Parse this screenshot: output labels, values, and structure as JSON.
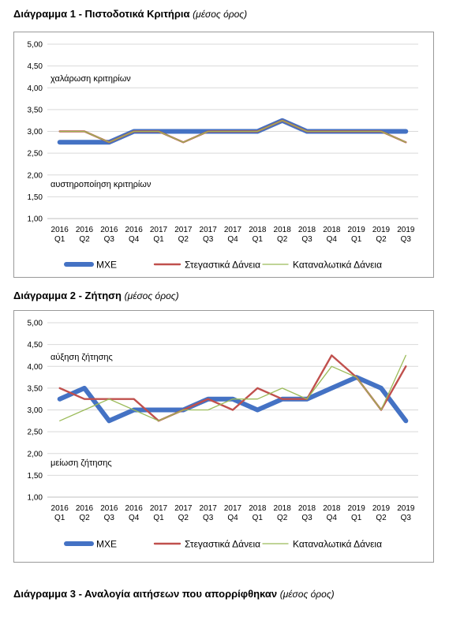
{
  "headings": {
    "chart1_title": "Διάγραμμα 1 - Πιστοδοτικά Κριτήρια",
    "chart1_subtitle": "(μέσος όρος)",
    "chart2_title": "Διάγραμμα 2 - Ζήτηση",
    "chart2_subtitle": "(μέσος όρος)",
    "chart3_title": "Διάγραμμα 3 - Αναλογία αιτήσεων που απορρίφθηκαν",
    "chart3_subtitle": "(μέσος όρος)"
  },
  "chart_data": [
    {
      "type": "line",
      "title": "Διάγραμμα 1 - Πιστοδοτικά Κριτήρια",
      "subtitle": "(μέσος όρος)",
      "categories": [
        [
          "2016",
          "Q1"
        ],
        [
          "2016",
          "Q2"
        ],
        [
          "2016",
          "Q3"
        ],
        [
          "2016",
          "Q4"
        ],
        [
          "2017",
          "Q1"
        ],
        [
          "2017",
          "Q2"
        ],
        [
          "2017",
          "Q3"
        ],
        [
          "2017",
          "Q4"
        ],
        [
          "2018",
          "Q1"
        ],
        [
          "2018",
          "Q2"
        ],
        [
          "2018",
          "Q3"
        ],
        [
          "2018",
          "Q4"
        ],
        [
          "2019",
          "Q1"
        ],
        [
          "2019",
          "Q2"
        ],
        [
          "2019",
          "Q3"
        ]
      ],
      "ylim": [
        1,
        5
      ],
      "yticks": [
        "1,00",
        "1,50",
        "2,00",
        "2,50",
        "3,00",
        "3,50",
        "4,00",
        "4,50",
        "5,00"
      ],
      "grid": true,
      "legend": "bottom",
      "annotations": {
        "upper": "χαλάρωση κριτηρίων",
        "lower": "αυστηροποίηση κριτηρίων"
      },
      "series": [
        {
          "name": "ΜΧΕ",
          "color": "#4472C4",
          "values": [
            2.75,
            2.75,
            2.75,
            3.0,
            3.0,
            3.0,
            3.0,
            3.0,
            3.0,
            3.25,
            3.0,
            3.0,
            3.0,
            3.0,
            3.0
          ]
        },
        {
          "name": "Στεγαστικά Δάνεια",
          "color": "#C0504D",
          "values": [
            3.0,
            3.0,
            2.75,
            3.0,
            3.0,
            2.75,
            3.0,
            3.0,
            3.0,
            3.25,
            3.0,
            3.0,
            3.0,
            3.0,
            2.75
          ]
        },
        {
          "name": "Καταναλωτικά Δάνεια",
          "color": "#9BBB59",
          "values": [
            3.0,
            3.0,
            2.75,
            3.0,
            3.0,
            2.75,
            3.0,
            3.0,
            3.0,
            3.25,
            3.0,
            3.0,
            3.0,
            3.0,
            2.75
          ]
        }
      ]
    },
    {
      "type": "line",
      "title": "Διάγραμμα 2 - Ζήτηση",
      "subtitle": "(μέσος όρος)",
      "categories": [
        [
          "2016",
          "Q1"
        ],
        [
          "2016",
          "Q2"
        ],
        [
          "2016",
          "Q3"
        ],
        [
          "2016",
          "Q4"
        ],
        [
          "2017",
          "Q1"
        ],
        [
          "2017",
          "Q2"
        ],
        [
          "2017",
          "Q3"
        ],
        [
          "2017",
          "Q4"
        ],
        [
          "2018",
          "Q1"
        ],
        [
          "2018",
          "Q2"
        ],
        [
          "2018",
          "Q3"
        ],
        [
          "2018",
          "Q4"
        ],
        [
          "2019",
          "Q1"
        ],
        [
          "2019",
          "Q2"
        ],
        [
          "2019",
          "Q3"
        ]
      ],
      "ylim": [
        1,
        5
      ],
      "yticks": [
        "1,00",
        "1,50",
        "2,00",
        "2,50",
        "3,00",
        "3,50",
        "4,00",
        "4,50",
        "5,00"
      ],
      "grid": true,
      "legend": "bottom",
      "annotations": {
        "upper": "αύξηση ζήτησης",
        "lower": "μείωση ζήτησης"
      },
      "series": [
        {
          "name": "ΜΧΕ",
          "color": "#4472C4",
          "values": [
            3.25,
            3.5,
            2.75,
            3.0,
            3.0,
            3.0,
            3.25,
            3.25,
            3.0,
            3.25,
            3.25,
            3.5,
            3.75,
            3.5,
            2.75
          ]
        },
        {
          "name": "Στεγαστικά Δάνεια",
          "color": "#C0504D",
          "values": [
            3.5,
            3.25,
            3.25,
            3.25,
            2.75,
            3.0,
            3.25,
            3.0,
            3.5,
            3.25,
            3.25,
            4.25,
            3.75,
            3.0,
            4.0
          ]
        },
        {
          "name": "Καταναλωτικά Δάνεια",
          "color": "#9BBB59",
          "values": [
            2.75,
            3.0,
            3.25,
            3.0,
            2.75,
            3.0,
            3.0,
            3.25,
            3.25,
            3.5,
            3.25,
            4.0,
            3.75,
            3.0,
            4.25
          ]
        }
      ]
    }
  ]
}
